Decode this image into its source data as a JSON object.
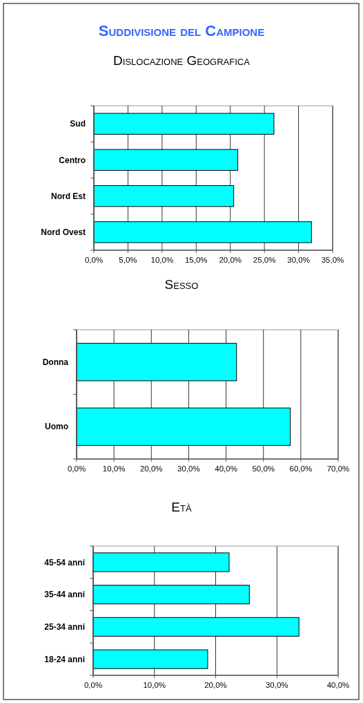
{
  "chart_data": [
    {
      "type": "bar",
      "orientation": "horizontal",
      "title": "Suddivisione del Campione",
      "subtitle": "Dislocazione Geografica",
      "categories": [
        "Sud",
        "Centro",
        "Nord Est",
        "Nord Ovest"
      ],
      "values": [
        26.4,
        21.1,
        20.5,
        31.9
      ],
      "color": "#00ffff",
      "xlim": [
        0,
        35
      ],
      "xticks": [
        {
          "value": 0,
          "label": "0,0%"
        },
        {
          "value": 5,
          "label": "5,0%"
        },
        {
          "value": 10,
          "label": "10,0%"
        },
        {
          "value": 15,
          "label": "15,0%"
        },
        {
          "value": 20,
          "label": "20,0%"
        },
        {
          "value": 25,
          "label": "25,0%"
        },
        {
          "value": 30,
          "label": "30,0%"
        },
        {
          "value": 35,
          "label": "35,0%"
        }
      ],
      "grid": "x"
    },
    {
      "type": "bar",
      "orientation": "horizontal",
      "title": "Sesso",
      "categories": [
        "Donna",
        "Uomo"
      ],
      "values": [
        42.8,
        57.2
      ],
      "color": "#00ffff",
      "xlim": [
        0,
        70
      ],
      "xticks": [
        {
          "value": 0,
          "label": "0,0%"
        },
        {
          "value": 10,
          "label": "10,0%"
        },
        {
          "value": 20,
          "label": "20,0%"
        },
        {
          "value": 30,
          "label": "30,0%"
        },
        {
          "value": 40,
          "label": "40,0%"
        },
        {
          "value": 50,
          "label": "50,0%"
        },
        {
          "value": 60,
          "label": "60,0%"
        },
        {
          "value": 70,
          "label": "70,0%"
        }
      ],
      "grid": "x"
    },
    {
      "type": "bar",
      "orientation": "horizontal",
      "title": "Età",
      "categories": [
        "45-54 anni",
        "35-44 anni",
        "25-34 anni",
        "18-24 anni"
      ],
      "values": [
        22.2,
        25.5,
        33.6,
        18.7
      ],
      "color": "#00ffff",
      "xlim": [
        0,
        40
      ],
      "xticks": [
        {
          "value": 0,
          "label": "0,0%"
        },
        {
          "value": 10,
          "label": "10,0%"
        },
        {
          "value": 20,
          "label": "20,0%"
        },
        {
          "value": 30,
          "label": "30,0%"
        },
        {
          "value": 40,
          "label": "40,0%"
        }
      ],
      "grid": "x"
    }
  ]
}
